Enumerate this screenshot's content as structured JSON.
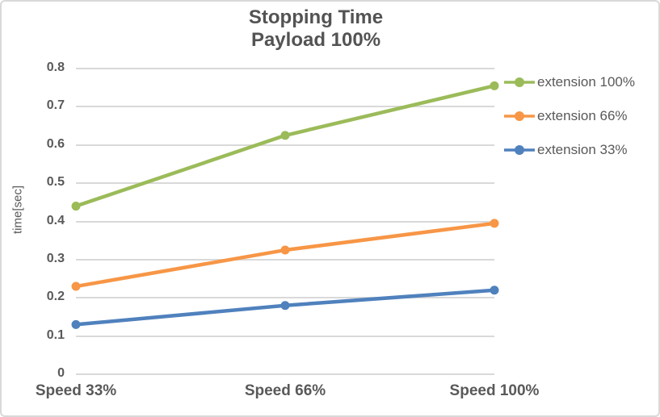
{
  "window": {
    "background": "#ffffff",
    "border_color": "#d9d9d9"
  },
  "chart_data": {
    "type": "line",
    "title_line1": "Stopping Time",
    "title_line2": "Payload 100%",
    "xlabel": "",
    "ylabel": "time[sec]",
    "categories": [
      "Speed 33%",
      "Speed 66%",
      "Speed 100%"
    ],
    "series": [
      {
        "name": "extension 100%",
        "color": "#9BBB59",
        "values": [
          0.44,
          0.625,
          0.755
        ]
      },
      {
        "name": "extension 66%",
        "color": "#F79646",
        "values": [
          0.23,
          0.325,
          0.395
        ]
      },
      {
        "name": "extension 33%",
        "color": "#4F81BD",
        "values": [
          0.13,
          0.18,
          0.22
        ]
      }
    ],
    "ylim": [
      0,
      0.8
    ],
    "yticks": [
      "0",
      "0.1",
      "0.2",
      "0.3",
      "0.4",
      "0.5",
      "0.6",
      "0.7",
      "0.8"
    ],
    "grid": "horizontal",
    "legend_position": "right",
    "colors": {
      "grid": "#d9d9d9",
      "axis_text": "#595959",
      "title_text": "#535353"
    }
  }
}
